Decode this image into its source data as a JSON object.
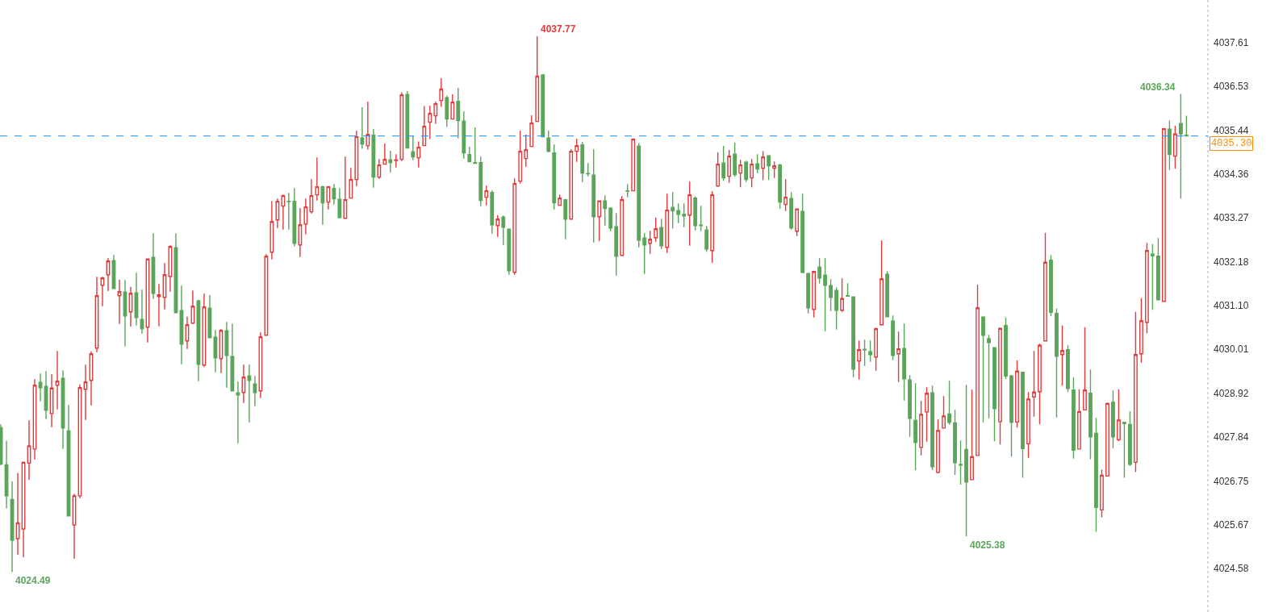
{
  "chart_data": {
    "type": "candlestick",
    "categories": [
      null,
      null,
      null,
      null,
      null,
      null,
      null,
      null,
      null,
      null,
      null,
      null,
      null,
      null,
      null,
      null,
      null,
      null,
      null,
      null,
      null,
      null,
      null,
      null,
      null,
      null,
      null,
      null,
      null,
      null,
      null,
      null,
      null,
      null,
      null,
      null,
      null,
      null,
      null,
      null,
      null,
      null,
      null,
      null,
      null,
      null,
      null,
      null,
      null,
      null,
      null,
      null,
      null,
      null,
      null,
      null,
      null,
      null,
      null,
      null,
      null,
      null,
      null,
      null,
      null,
      null,
      null,
      null,
      null,
      null,
      null,
      null,
      null,
      null,
      null,
      null,
      null,
      null,
      null,
      null,
      null,
      null,
      null,
      null,
      null,
      null,
      null,
      null,
      null,
      null,
      null,
      null,
      null,
      null,
      null,
      null,
      null,
      null,
      null,
      null,
      null,
      null,
      null,
      null,
      null,
      null,
      null,
      null,
      null,
      null,
      null,
      null,
      null,
      null,
      null,
      null,
      null,
      null,
      null,
      null,
      null,
      null,
      null,
      null,
      null,
      null,
      null,
      null,
      null,
      null,
      null,
      null,
      null,
      null,
      null,
      null,
      null,
      null,
      null,
      null,
      null,
      null,
      null,
      null,
      null,
      null,
      null,
      null,
      null,
      null,
      null,
      null,
      null,
      null,
      null,
      null,
      null,
      null,
      null,
      null,
      null,
      null,
      null,
      null,
      null,
      null,
      null,
      null,
      null,
      null,
      null,
      null,
      null,
      null,
      null,
      null,
      null,
      null,
      null,
      null,
      null,
      null,
      null,
      null,
      null,
      null,
      null,
      null,
      null,
      null,
      null,
      null,
      null,
      null,
      null,
      null,
      null,
      null,
      null,
      null,
      null,
      null,
      null,
      null,
      null,
      null,
      null,
      null,
      null,
      null,
      null
    ],
    "ohlc": [
      [
        4028.07,
        4028.15,
        4027.14,
        4027.17
      ],
      [
        4027.15,
        4027.74,
        4026.07,
        4026.38
      ],
      [
        4026.29,
        4026.74,
        4024.49,
        4025.28
      ],
      [
        4025.32,
        4026.95,
        4024.92,
        4025.71
      ],
      [
        4025.56,
        4027.23,
        4024.86,
        4027.21
      ],
      [
        4027.19,
        4028.25,
        4026.78,
        4027.62
      ],
      [
        4027.54,
        4029.27,
        4027.28,
        4029.12
      ],
      [
        4029.19,
        4029.41,
        4028.72,
        4029.06
      ],
      [
        4029.09,
        4029.47,
        4028.28,
        4028.5
      ],
      [
        4028.42,
        4029.39,
        4028.08,
        4029.05
      ],
      [
        4029.12,
        4029.97,
        4028.52,
        4029.22
      ],
      [
        4029.29,
        4029.49,
        4027.54,
        4028.06
      ],
      [
        4027.99,
        4028.63,
        4025.88,
        4025.88
      ],
      [
        4025.66,
        4026.43,
        4024.82,
        4026.38
      ],
      [
        4026.38,
        4029.14,
        4026.32,
        4029.06
      ],
      [
        4029.02,
        4029.63,
        4028.26,
        4029.2
      ],
      [
        4029.24,
        4029.96,
        4028.62,
        4029.9
      ],
      [
        4030.04,
        4031.81,
        4029.94,
        4031.34
      ],
      [
        4031.6,
        4031.81,
        4031.08,
        4031.78
      ],
      [
        4031.86,
        4032.27,
        4031.46,
        4032.2
      ],
      [
        4032.21,
        4032.35,
        4031.52,
        4031.52
      ],
      [
        4031.34,
        4031.74,
        4030.64,
        4031.44
      ],
      [
        4031.43,
        4031.73,
        4030.08,
        4030.84
      ],
      [
        4030.94,
        4031.56,
        4030.58,
        4031.4
      ],
      [
        4031.41,
        4031.91,
        4030.6,
        4030.8
      ],
      [
        4030.75,
        4031.49,
        4030.4,
        4030.52
      ],
      [
        4030.56,
        4032.26,
        4030.18,
        4032.25
      ],
      [
        4032.29,
        4032.89,
        4031.26,
        4031.4
      ],
      [
        4031.32,
        4031.63,
        4030.58,
        4031.36
      ],
      [
        4031.3,
        4032.15,
        4031.0,
        4031.86
      ],
      [
        4031.82,
        4032.59,
        4031.44,
        4032.56
      ],
      [
        4032.53,
        4032.89,
        4030.92,
        4030.92
      ],
      [
        4030.97,
        4031.59,
        4029.64,
        4030.14
      ],
      [
        4030.22,
        4030.82,
        4030.02,
        4030.62
      ],
      [
        4030.66,
        4031.47,
        4030.64,
        4031.08
      ],
      [
        4031.21,
        4031.24,
        4029.22,
        4029.64
      ],
      [
        4029.62,
        4031.39,
        4029.57,
        4031.06
      ],
      [
        4031.03,
        4031.36,
        4030.3,
        4030.3
      ],
      [
        4030.31,
        4030.49,
        4029.44,
        4029.8
      ],
      [
        4029.78,
        4030.51,
        4029.42,
        4030.48
      ],
      [
        4030.47,
        4030.69,
        4029.06,
        4029.86
      ],
      [
        4029.83,
        4030.65,
        4028.98,
        4028.98
      ],
      [
        4028.93,
        4029.21,
        4027.68,
        4028.88
      ],
      [
        4028.94,
        4029.63,
        4028.68,
        4029.32
      ],
      [
        4029.35,
        4029.63,
        4028.2,
        4029.24
      ],
      [
        4029.15,
        4029.35,
        4028.6,
        4028.94
      ],
      [
        4028.98,
        4030.43,
        4028.8,
        4030.32
      ],
      [
        4030.36,
        4032.37,
        4030.36,
        4032.32
      ],
      [
        4032.42,
        4033.69,
        4032.24,
        4033.18
      ],
      [
        4033.22,
        4033.75,
        4033.02,
        4033.68
      ],
      [
        4033.56,
        4033.85,
        4032.98,
        4033.82
      ],
      [
        4033.68,
        4033.89,
        4032.98,
        4033.67
      ],
      [
        4033.68,
        4034.01,
        4032.56,
        4032.64
      ],
      [
        4032.6,
        4033.51,
        4032.3,
        4033.1
      ],
      [
        4033.12,
        4033.75,
        4032.86,
        4033.54
      ],
      [
        4033.42,
        4034.23,
        4033.38,
        4033.82
      ],
      [
        4033.84,
        4034.77,
        4033.7,
        4034.04
      ],
      [
        4034.04,
        4034.07,
        4033.1,
        4033.64
      ],
      [
        4033.66,
        4034.06,
        4033.48,
        4034.04
      ],
      [
        4034.0,
        4034.11,
        4033.6,
        4033.74
      ],
      [
        4033.73,
        4034.01,
        4033.26,
        4033.28
      ],
      [
        4033.26,
        4034.79,
        4033.26,
        4033.72
      ],
      [
        4033.76,
        4034.51,
        4033.76,
        4034.22
      ],
      [
        4034.22,
        4035.43,
        4034.06,
        4035.28
      ],
      [
        4035.25,
        4036.01,
        4034.98,
        4035.1
      ],
      [
        4035.06,
        4036.15,
        4034.96,
        4035.34
      ],
      [
        4035.32,
        4035.47,
        4034.02,
        4034.28
      ],
      [
        4034.28,
        4034.73,
        4034.24,
        4034.58
      ],
      [
        4034.6,
        4035.11,
        4034.6,
        4034.72
      ],
      [
        4034.71,
        4034.93,
        4034.4,
        4034.64
      ],
      [
        4034.69,
        4034.85,
        4034.52,
        4034.71
      ],
      [
        4034.72,
        4036.38,
        4034.68,
        4036.32
      ],
      [
        4036.33,
        4036.41,
        4035.0,
        4035.0
      ],
      [
        4034.91,
        4035.29,
        4034.7,
        4034.78
      ],
      [
        4034.76,
        4035.16,
        4034.52,
        4035.02
      ],
      [
        4035.06,
        4036.04,
        4035.06,
        4035.54
      ],
      [
        4035.64,
        4036.05,
        4035.22,
        4035.86
      ],
      [
        4035.8,
        4036.15,
        4035.6,
        4036.1
      ],
      [
        4036.18,
        4036.73,
        4036.02,
        4036.46
      ],
      [
        4036.25,
        4036.3,
        4035.52,
        4035.72
      ],
      [
        4035.72,
        4036.33,
        4035.72,
        4036.14
      ],
      [
        4036.16,
        4036.49,
        4035.24,
        4035.68
      ],
      [
        4035.67,
        4035.91,
        4034.74,
        4034.88
      ],
      [
        4034.84,
        4035.03,
        4034.66,
        4034.66
      ],
      [
        4034.64,
        4035.51,
        4034.62,
        4034.62
      ],
      [
        4034.64,
        4034.79,
        4033.56,
        4033.7
      ],
      [
        4033.78,
        4034.07,
        4033.58,
        4033.94
      ],
      [
        4033.9,
        4033.95,
        4032.88,
        4033.1
      ],
      [
        4033.08,
        4033.34,
        4032.8,
        4033.24
      ],
      [
        4033.29,
        4033.33,
        4032.6,
        4033.04
      ],
      [
        4032.99,
        4033.0,
        4031.86,
        4031.96
      ],
      [
        4031.92,
        4034.25,
        4031.86,
        4034.12
      ],
      [
        4034.18,
        4035.43,
        4034.12,
        4034.92
      ],
      [
        4034.74,
        4035.33,
        4034.54,
        4034.96
      ],
      [
        4035.04,
        4035.81,
        4035.04,
        4035.62
      ],
      [
        4035.66,
        4037.77,
        4035.66,
        4036.78
      ],
      [
        4036.81,
        4036.83,
        4035.28,
        4035.28
      ],
      [
        4035.25,
        4035.43,
        4034.89,
        4034.92
      ],
      [
        4034.88,
        4035.09,
        4033.48,
        4033.64
      ],
      [
        4033.58,
        4033.85,
        4033.58,
        4033.76
      ],
      [
        4033.72,
        4033.74,
        4032.74,
        4033.24
      ],
      [
        4033.24,
        4034.97,
        4033.24,
        4034.92
      ],
      [
        4034.92,
        4035.23,
        4034.66,
        4035.06
      ],
      [
        4035.08,
        4035.15,
        4034.16,
        4034.38
      ],
      [
        4034.37,
        4034.63,
        4034.3,
        4034.36
      ],
      [
        4034.33,
        4034.97,
        4032.66,
        4033.3
      ],
      [
        4033.3,
        4033.7,
        4032.7,
        4033.69
      ],
      [
        4033.69,
        4033.83,
        4033.08,
        4033.5
      ],
      [
        4033.51,
        4033.53,
        4032.94,
        4033.02
      ],
      [
        4033.05,
        4033.39,
        4031.84,
        4032.32
      ],
      [
        4032.34,
        4033.81,
        4032.34,
        4033.72
      ],
      [
        4033.94,
        4034.11,
        4033.78,
        4033.93
      ],
      [
        4033.94,
        4035.24,
        4033.94,
        4035.22
      ],
      [
        4035.05,
        4035.12,
        4032.54,
        4032.72
      ],
      [
        4032.77,
        4032.9,
        4031.88,
        4032.6
      ],
      [
        4032.64,
        4032.95,
        4032.38,
        4032.74
      ],
      [
        4032.78,
        4033.28,
        4032.68,
        4033.0
      ],
      [
        4033.03,
        4033.25,
        4032.5,
        4032.58
      ],
      [
        4032.54,
        4033.87,
        4032.4,
        4033.46
      ],
      [
        4033.53,
        4033.91,
        4033.01,
        4033.44
      ],
      [
        4033.45,
        4033.63,
        4033.14,
        4033.36
      ],
      [
        4033.36,
        4033.63,
        4033.04,
        4033.32
      ],
      [
        4033.34,
        4034.17,
        4032.58,
        4033.84
      ],
      [
        4033.76,
        4033.8,
        4032.96,
        4033.08
      ],
      [
        4033.09,
        4033.57,
        4032.94,
        4033.08
      ],
      [
        4032.97,
        4033.07,
        4032.43,
        4032.5
      ],
      [
        4032.46,
        4033.93,
        4032.16,
        4033.84
      ],
      [
        4034.06,
        4034.89,
        4034.04,
        4034.6
      ],
      [
        4034.63,
        4035.05,
        4034.19,
        4034.26
      ],
      [
        4034.3,
        4034.95,
        4034.14,
        4034.8
      ],
      [
        4034.85,
        4035.13,
        4034.29,
        4034.34
      ],
      [
        4034.38,
        4034.71,
        4034.03,
        4034.58
      ],
      [
        4034.65,
        4034.69,
        4034.16,
        4034.22
      ],
      [
        4034.26,
        4034.73,
        4034.03,
        4034.6
      ],
      [
        4034.61,
        4034.85,
        4034.38,
        4034.48
      ],
      [
        4034.5,
        4034.92,
        4034.21,
        4034.78
      ],
      [
        4034.81,
        4034.83,
        4034.21,
        4034.56
      ],
      [
        4034.5,
        4034.67,
        4034.26,
        4034.56
      ],
      [
        4034.58,
        4034.61,
        4033.5,
        4033.66
      ],
      [
        4033.6,
        4034.23,
        4033.44,
        4033.78
      ],
      [
        4033.75,
        4033.91,
        4032.98,
        4033.02
      ],
      [
        4032.94,
        4033.49,
        4032.82,
        4033.49
      ],
      [
        4033.43,
        4033.87,
        4031.9,
        4031.92
      ],
      [
        4031.89,
        4031.89,
        4030.9,
        4031.04
      ],
      [
        4031.0,
        4031.96,
        4030.8,
        4031.94
      ],
      [
        4032.05,
        4032.27,
        4031.64,
        4031.78
      ],
      [
        4031.85,
        4032.27,
        4030.46,
        4031.6
      ],
      [
        4031.59,
        4031.75,
        4030.96,
        4031.3
      ],
      [
        4031.47,
        4031.55,
        4030.5,
        4030.98
      ],
      [
        4030.98,
        4031.77,
        4030.94,
        4031.27
      ],
      [
        4031.34,
        4031.65,
        4031.32,
        4031.33
      ],
      [
        4031.31,
        4031.32,
        4029.32,
        4029.52
      ],
      [
        4029.72,
        4030.23,
        4029.26,
        4030.0
      ],
      [
        4030.01,
        4030.25,
        4029.6,
        4030.0
      ],
      [
        4029.95,
        4030.23,
        4029.7,
        4029.88
      ],
      [
        4029.82,
        4030.55,
        4029.48,
        4030.52
      ],
      [
        4030.62,
        4032.71,
        4030.62,
        4031.76
      ],
      [
        4031.87,
        4031.95,
        4030.82,
        4030.82
      ],
      [
        4030.71,
        4030.85,
        4029.74,
        4029.86
      ],
      [
        4029.9,
        4030.45,
        4029.2,
        4030.02
      ],
      [
        4030.03,
        4030.65,
        4028.74,
        4029.28
      ],
      [
        4029.25,
        4029.37,
        4027.84,
        4028.3
      ],
      [
        4028.25,
        4029.17,
        4027.02,
        4027.7
      ],
      [
        4027.58,
        4028.73,
        4027.38,
        4028.4
      ],
      [
        4028.46,
        4029.07,
        4027.72,
        4028.92
      ],
      [
        4028.93,
        4029.11,
        4027.02,
        4027.1
      ],
      [
        4026.96,
        4028.27,
        4026.94,
        4028.0
      ],
      [
        4028.06,
        4028.85,
        4028.06,
        4028.36
      ],
      [
        4028.41,
        4029.23,
        4028.14,
        4028.2
      ],
      [
        4028.19,
        4028.51,
        4026.9,
        4027.2
      ],
      [
        4027.16,
        4027.75,
        4026.66,
        4027.14
      ],
      [
        4027.53,
        4029.13,
        4025.38,
        4026.72
      ],
      [
        4026.78,
        4029.01,
        4026.78,
        4027.35
      ],
      [
        4027.38,
        4031.61,
        4027.38,
        4031.04
      ],
      [
        4030.81,
        4030.83,
        4028.2,
        4030.36
      ],
      [
        4030.27,
        4030.37,
        4028.3,
        4030.18
      ],
      [
        4030.05,
        4030.05,
        4027.73,
        4028.54
      ],
      [
        4028.22,
        4030.55,
        4027.65,
        4030.53
      ],
      [
        4030.6,
        4030.8,
        4029.27,
        4029.35
      ],
      [
        4029.35,
        4029.37,
        4027.35,
        4028.2
      ],
      [
        4028.21,
        4029.74,
        4028.07,
        4029.47
      ],
      [
        4029.44,
        4029.46,
        4026.83,
        4027.55
      ],
      [
        4027.67,
        4028.95,
        4027.32,
        4028.78
      ],
      [
        4028.83,
        4029.97,
        4028.34,
        4028.95
      ],
      [
        4028.96,
        4030.15,
        4028.15,
        4030.11
      ],
      [
        4030.22,
        4032.9,
        4030.22,
        4032.17
      ],
      [
        4032.22,
        4032.35,
        4030.84,
        4030.93
      ],
      [
        4030.9,
        4031.02,
        4028.32,
        4029.84
      ],
      [
        4029.88,
        4030.6,
        4029.11,
        4029.98
      ],
      [
        4030.0,
        4030.11,
        4028.95,
        4029.04
      ],
      [
        4029.0,
        4029.32,
        4027.3,
        4027.51
      ],
      [
        4027.54,
        4029.02,
        4027.54,
        4028.47
      ],
      [
        4028.51,
        4030.56,
        4028.51,
        4029.0
      ],
      [
        4028.92,
        4029.51,
        4027.29,
        4027.84
      ],
      [
        4027.93,
        4028.31,
        4025.49,
        4026.09
      ],
      [
        4026.03,
        4027.03,
        4025.85,
        4026.89
      ],
      [
        4026.87,
        4028.69,
        4026.87,
        4028.67
      ],
      [
        4028.7,
        4028.99,
        4027.56,
        4027.84
      ],
      [
        4027.77,
        4029.02,
        4027.73,
        4028.26
      ],
      [
        4028.2,
        4028.22,
        4026.83,
        4028.17
      ],
      [
        4028.15,
        4028.47,
        4027.12,
        4027.16
      ],
      [
        4027.21,
        4030.94,
        4026.97,
        4029.88
      ],
      [
        4029.9,
        4031.28,
        4029.68,
        4030.72
      ],
      [
        4030.68,
        4032.65,
        4030.41,
        4032.46
      ],
      [
        4032.37,
        4032.62,
        4030.99,
        4032.33
      ],
      [
        4032.32,
        4032.77,
        4031.24,
        4031.24
      ],
      [
        4031.2,
        4035.49,
        4031.2,
        4035.48
      ],
      [
        4035.47,
        4035.68,
        4034.46,
        4034.84
      ],
      [
        4034.8,
        4035.55,
        4034.49,
        4035.35
      ],
      [
        4035.61,
        4036.34,
        4033.75,
        4035.35
      ],
      [
        4035.32,
        4035.8,
        4035.29,
        4035.3
      ]
    ],
    "colors": [
      "#5ba55a",
      "#5ba55a",
      "#5ba55a",
      "#e03c3c",
      "#e03c3c",
      "#e03c3c",
      "#e03c3c",
      "#5ba55a",
      "#5ba55a",
      "#e03c3c",
      "#e03c3c",
      "#5ba55a",
      "#5ba55a",
      "#e03c3c",
      "#e03c3c",
      "#e03c3c",
      "#e03c3c",
      "#e03c3c",
      "#e03c3c",
      "#e03c3c",
      "#5ba55a",
      "#e03c3c",
      "#5ba55a",
      "#e03c3c",
      "#5ba55a",
      "#5ba55a",
      "#e03c3c",
      "#5ba55a",
      "#e03c3c",
      "#e03c3c",
      "#e03c3c",
      "#5ba55a",
      "#5ba55a",
      "#e03c3c",
      "#e03c3c",
      "#5ba55a",
      "#e03c3c",
      "#5ba55a",
      "#5ba55a",
      "#e03c3c",
      "#5ba55a",
      "#5ba55a",
      "#5ba55a",
      "#e03c3c",
      "#5ba55a",
      "#5ba55a",
      "#e03c3c",
      "#e03c3c",
      "#e03c3c",
      "#e03c3c",
      "#e03c3c",
      "#5ba55a",
      "#5ba55a",
      "#e03c3c",
      "#e03c3c",
      "#e03c3c",
      "#e03c3c",
      "#5ba55a",
      "#e03c3c",
      "#5ba55a",
      "#5ba55a",
      "#e03c3c",
      "#e03c3c",
      "#e03c3c",
      "#5ba55a",
      "#e03c3c",
      "#5ba55a",
      "#e03c3c",
      "#e03c3c",
      "#5ba55a",
      "#e03c3c",
      "#e03c3c",
      "#5ba55a",
      "#5ba55a",
      "#e03c3c",
      "#e03c3c",
      "#e03c3c",
      "#e03c3c",
      "#e03c3c",
      "#5ba55a",
      "#e03c3c",
      "#5ba55a",
      "#5ba55a",
      "#5ba55a",
      "#5ba55a",
      "#5ba55a",
      "#e03c3c",
      "#5ba55a",
      "#e03c3c",
      "#5ba55a",
      "#5ba55a",
      "#e03c3c",
      "#e03c3c",
      "#e03c3c",
      "#e03c3c",
      "#e03c3c",
      "#5ba55a",
      "#5ba55a",
      "#5ba55a",
      "#e03c3c",
      "#5ba55a",
      "#e03c3c",
      "#e03c3c",
      "#5ba55a",
      "#5ba55a",
      "#5ba55a",
      "#e03c3c",
      "#5ba55a",
      "#5ba55a",
      "#5ba55a",
      "#e03c3c",
      "#5ba55a",
      "#e03c3c",
      "#5ba55a",
      "#5ba55a",
      "#e03c3c",
      "#e03c3c",
      "#5ba55a",
      "#e03c3c",
      "#5ba55a",
      "#5ba55a",
      "#5ba55a",
      "#e03c3c",
      "#5ba55a",
      "#5ba55a",
      "#5ba55a",
      "#e03c3c",
      "#e03c3c",
      "#5ba55a",
      "#e03c3c",
      "#5ba55a",
      "#e03c3c",
      "#5ba55a",
      "#e03c3c",
      "#5ba55a",
      "#e03c3c",
      "#5ba55a",
      "#e03c3c",
      "#5ba55a",
      "#e03c3c",
      "#5ba55a",
      "#e03c3c",
      "#5ba55a",
      "#5ba55a",
      "#e03c3c",
      "#5ba55a",
      "#5ba55a",
      "#5ba55a",
      "#5ba55a",
      "#e03c3c",
      "#5ba55a",
      "#5ba55a",
      "#e03c3c",
      "#5ba55a",
      "#5ba55a",
      "#e03c3c",
      "#e03c3c",
      "#5ba55a",
      "#5ba55a",
      "#e03c3c",
      "#5ba55a",
      "#5ba55a",
      "#5ba55a",
      "#e03c3c",
      "#e03c3c",
      "#5ba55a",
      "#e03c3c",
      "#e03c3c",
      "#5ba55a",
      "#5ba55a",
      "#5ba55a",
      "#5ba55a",
      "#e03c3c",
      "#e03c3c",
      "#5ba55a",
      "#5ba55a",
      "#5ba55a",
      "#e03c3c",
      "#5ba55a",
      "#5ba55a",
      "#e03c3c",
      "#5ba55a",
      "#e03c3c",
      "#e03c3c",
      "#e03c3c",
      "#e03c3c",
      "#5ba55a",
      "#5ba55a",
      "#e03c3c",
      "#5ba55a",
      "#5ba55a",
      "#e03c3c",
      "#e03c3c",
      "#5ba55a",
      "#5ba55a",
      "#e03c3c",
      "#e03c3c",
      "#5ba55a",
      "#e03c3c",
      "#5ba55a",
      "#5ba55a",
      "#e03c3c",
      "#e03c3c",
      "#e03c3c",
      "#5ba55a",
      "#5ba55a",
      "#e03c3c",
      "#5ba55a",
      "#e03c3c",
      "#5ba55a",
      "#5ba55a"
    ],
    "ylim": [
      4023.5,
      4038.67
    ],
    "yticks": [
      4024.58,
      4025.67,
      4026.75,
      4027.84,
      4028.92,
      4030.01,
      {
        "value": 4031.1,
        "label": "4031.10"
      },
      4032.18,
      4033.27,
      4034.36,
      4035.44,
      4036.53,
      4037.61
    ],
    "ref_lines": [
      {
        "axis": "y",
        "value": 4035.3,
        "label": "4035.30",
        "color": "#1e90ff",
        "line_style": "dashed"
      }
    ],
    "annotations": [
      "4037.77",
      "4036.34",
      "4025.38",
      "4024.49"
    ]
  }
}
